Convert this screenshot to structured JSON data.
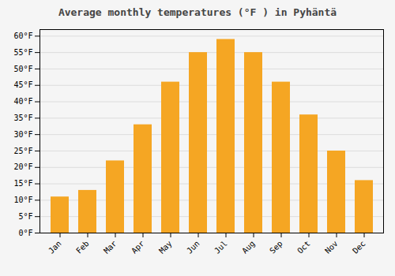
{
  "chart_data": {
    "type": "bar",
    "title": "Average monthly temperatures (°F ) in Pyhäntä",
    "categories": [
      "Jan",
      "Feb",
      "Mar",
      "Apr",
      "May",
      "Jun",
      "Jul",
      "Aug",
      "Sep",
      "Oct",
      "Nov",
      "Dec"
    ],
    "values": [
      11,
      13,
      22,
      33,
      46,
      55,
      59,
      55,
      46,
      36,
      25,
      16
    ],
    "color": "#F5A623",
    "ylim": [
      0,
      62
    ],
    "yticks": [
      {
        "value": 0,
        "label": "0°F"
      },
      {
        "value": 5,
        "label": "5°F"
      },
      {
        "value": 10,
        "label": "10°F"
      },
      {
        "value": 15,
        "label": "15°F"
      },
      {
        "value": 20,
        "label": "20°F"
      },
      {
        "value": 25,
        "label": "25°F"
      },
      {
        "value": 30,
        "label": "30°F"
      },
      {
        "value": 35,
        "label": "35°F"
      },
      {
        "value": 40,
        "label": "40°F"
      },
      {
        "value": 45,
        "label": "45°F"
      },
      {
        "value": 50,
        "label": "50°F"
      },
      {
        "value": 55,
        "label": "55°F"
      },
      {
        "value": 60,
        "label": "60°F"
      }
    ],
    "grid": true
  }
}
